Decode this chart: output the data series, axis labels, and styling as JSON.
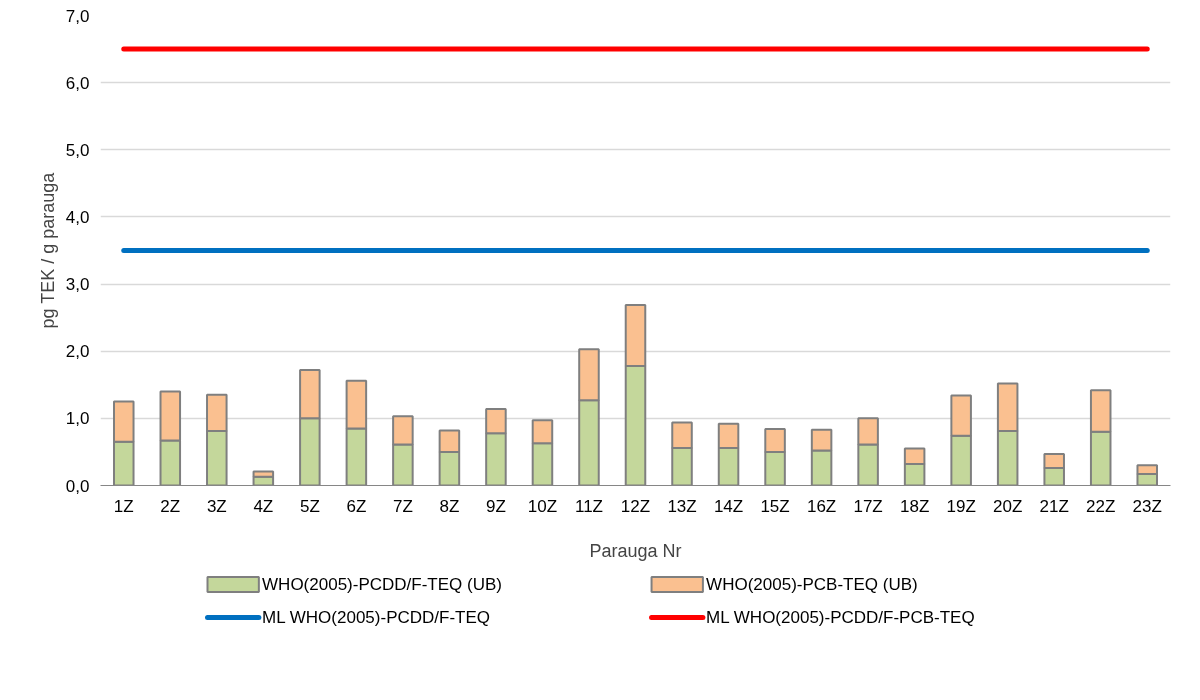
{
  "chart_data": {
    "type": "bar",
    "stacked": true,
    "xlabel": "Parauga Nr",
    "ylabel": "pg TEK / g parauga",
    "categories": [
      "1Z",
      "2Z",
      "3Z",
      "4Z",
      "5Z",
      "6Z",
      "7Z",
      "8Z",
      "9Z",
      "10Z",
      "11Z",
      "12Z",
      "13Z",
      "14Z",
      "15Z",
      "16Z",
      "17Z",
      "18Z",
      "19Z",
      "20Z",
      "21Z",
      "22Z",
      "23Z"
    ],
    "series": [
      {
        "name": "WHO(2005)-PCDD/F-TEQ (UB)",
        "color": "#c4d79b",
        "values": [
          0.65,
          0.67,
          0.81,
          0.13,
          1.0,
          0.85,
          0.61,
          0.5,
          0.78,
          0.63,
          1.27,
          1.78,
          0.56,
          0.56,
          0.5,
          0.52,
          0.61,
          0.32,
          0.74,
          0.81,
          0.26,
          0.8,
          0.17
        ]
      },
      {
        "name": "WHO(2005)-PCB-TEQ (UB)",
        "color": "#fac090",
        "values": [
          0.6,
          0.73,
          0.54,
          0.08,
          0.72,
          0.71,
          0.42,
          0.32,
          0.36,
          0.34,
          0.76,
          0.91,
          0.38,
          0.36,
          0.34,
          0.31,
          0.39,
          0.23,
          0.6,
          0.71,
          0.21,
          0.62,
          0.13
        ]
      },
      {
        "name": "ML WHO(2005)-PCDD/F-TEQ",
        "type": "line",
        "color": "#0070c0",
        "values": [
          3.5,
          3.5,
          3.5,
          3.5,
          3.5,
          3.5,
          3.5,
          3.5,
          3.5,
          3.5,
          3.5,
          3.5,
          3.5,
          3.5,
          3.5,
          3.5,
          3.5,
          3.5,
          3.5,
          3.5,
          3.5,
          3.5,
          3.5
        ]
      },
      {
        "name": "ML WHO(2005)-PCDD/F-PCB-TEQ",
        "type": "line",
        "color": "#ff0000",
        "values": [
          6.5,
          6.5,
          6.5,
          6.5,
          6.5,
          6.5,
          6.5,
          6.5,
          6.5,
          6.5,
          6.5,
          6.5,
          6.5,
          6.5,
          6.5,
          6.5,
          6.5,
          6.5,
          6.5,
          6.5,
          6.5,
          6.5,
          6.5
        ]
      }
    ],
    "ylim": [
      0,
      7
    ],
    "yticks": [
      {
        "value": 0,
        "label": "0,0"
      },
      {
        "value": 1,
        "label": "1,0"
      },
      {
        "value": 2,
        "label": "2,0"
      },
      {
        "value": 3,
        "label": "3,0"
      },
      {
        "value": 4,
        "label": "4,0"
      },
      {
        "value": 5,
        "label": "5,0"
      },
      {
        "value": 6,
        "label": "6,0"
      },
      {
        "value": 7,
        "label": "7,0"
      }
    ],
    "grid": "y",
    "legend": "bottom"
  }
}
